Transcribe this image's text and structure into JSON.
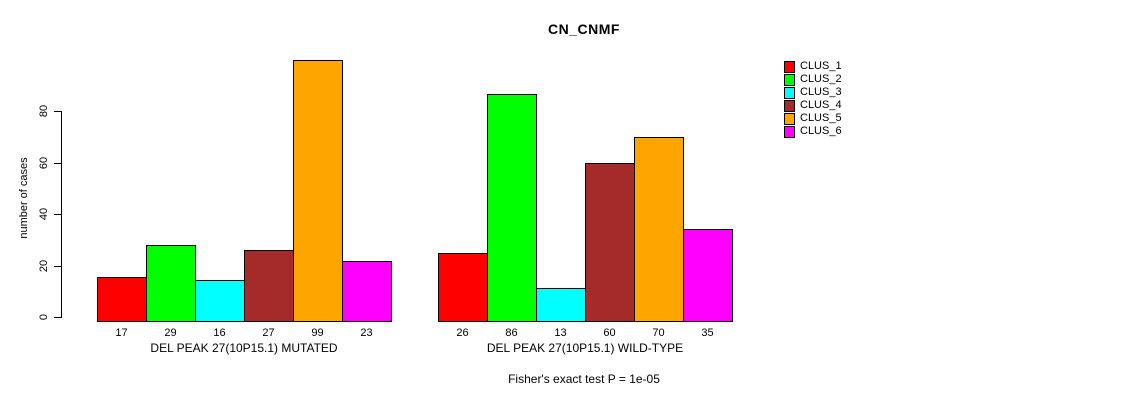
{
  "chart_data": {
    "type": "bar",
    "title": "CN_CNMF",
    "ylabel": "number of cases",
    "footnote": "Fisher's exact test P = 1e-05",
    "yticks": [
      0,
      20,
      40,
      60,
      80
    ],
    "ylim": [
      0,
      99
    ],
    "grid": false,
    "legend_position": "right-outside",
    "categories": [
      "DEL PEAK 27(10P15.1) MUTATED",
      "DEL PEAK 27(10P15.1) WILD-TYPE"
    ],
    "series": [
      {
        "name": "CLUS_1",
        "color": "#FF0000",
        "values": [
          17,
          26
        ]
      },
      {
        "name": "CLUS_2",
        "color": "#00FF00",
        "values": [
          29,
          86
        ]
      },
      {
        "name": "CLUS_3",
        "color": "#00FFFF",
        "values": [
          16,
          13
        ]
      },
      {
        "name": "CLUS_4",
        "color": "#A52A2A",
        "values": [
          27,
          60
        ]
      },
      {
        "name": "CLUS_5",
        "color": "#FFA500",
        "values": [
          99,
          70
        ]
      },
      {
        "name": "CLUS_6",
        "color": "#FF00FF",
        "values": [
          23,
          35
        ]
      }
    ],
    "bar_value_labels": {
      "group_1": [
        17,
        29,
        16,
        27,
        99,
        23
      ],
      "group_2": [
        26,
        86,
        13,
        60,
        70,
        35
      ]
    }
  }
}
